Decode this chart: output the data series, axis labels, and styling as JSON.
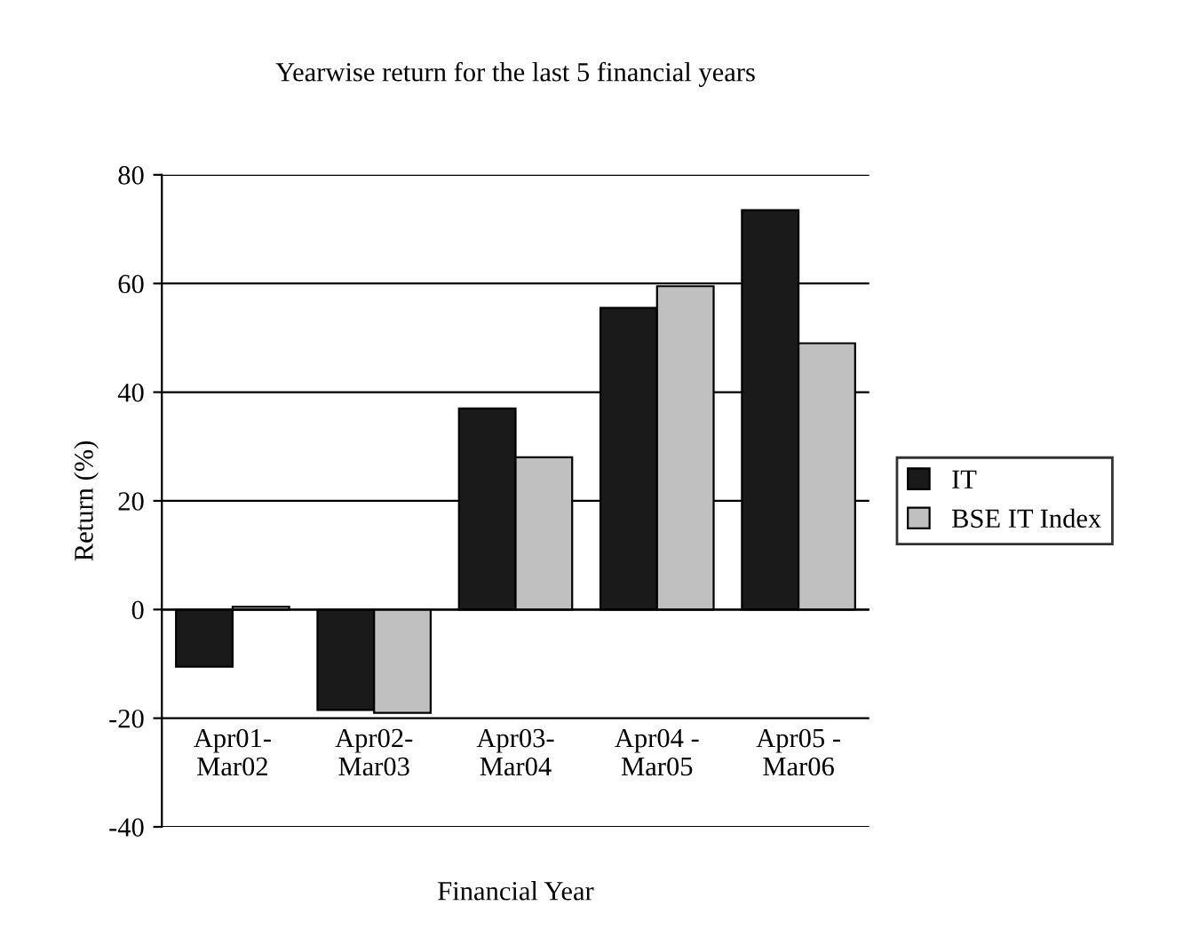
{
  "chart_data": {
    "type": "bar",
    "title": "Yearwise return for the last 5 financial years",
    "xlabel": "Financial Year",
    "ylabel": "Return (%)",
    "categories": [
      "Apr01-\nMar02",
      "Apr02-\nMar03",
      "Apr03-\nMar04",
      "Apr04 -\nMar05",
      "Apr05 -\nMar06"
    ],
    "series": [
      {
        "name": "IT",
        "color": "#1a1a1a",
        "values": [
          -10.5,
          -18.5,
          37,
          55.5,
          73.5
        ]
      },
      {
        "name": "BSE IT Index",
        "color": "#c0c0c0",
        "values": [
          0.5,
          -19,
          28,
          59.5,
          49
        ]
      }
    ],
    "ylim": [
      -40,
      80
    ],
    "yticks": [
      -40,
      -20,
      0,
      20,
      40,
      60,
      80
    ],
    "grid": "y",
    "legend": "right"
  }
}
